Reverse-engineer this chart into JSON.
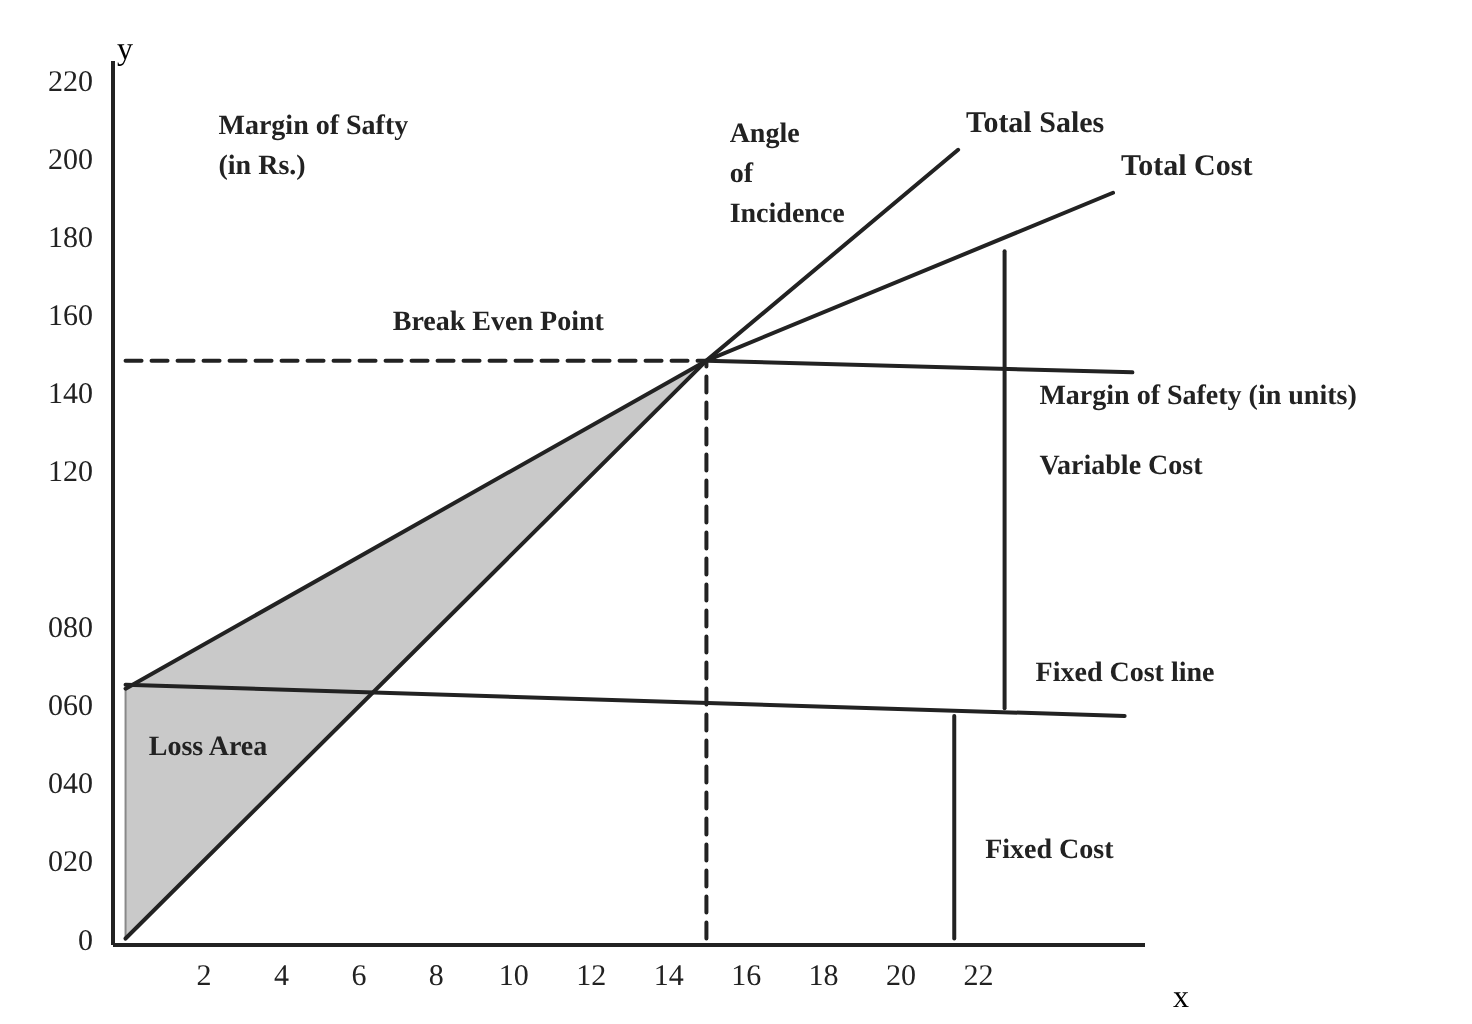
{
  "chart_data": {
    "type": "line",
    "xlabel": "x",
    "ylabel": "y",
    "xlim": [
      -0.35,
      26.3
    ],
    "ylim": [
      -1.4,
      225
    ],
    "xticks": [
      2,
      4,
      6,
      8,
      10,
      12,
      14,
      16,
      18,
      20,
      22
    ],
    "yticks": [
      0,
      {
        "value": 20,
        "label": "020"
      },
      {
        "value": 40,
        "label": "040"
      },
      {
        "value": 60,
        "label": "060"
      },
      {
        "value": 80,
        "label": "080"
      },
      120,
      140,
      160,
      180,
      200,
      220
    ],
    "grid": false,
    "series": [
      {
        "name": "Total Sales",
        "color": "#222222",
        "x": [
          0,
          15,
          21.5
        ],
        "values": [
          0,
          148,
          202
        ],
        "lower": [
          0,
          148,
          null
        ],
        "upper": [
          64,
          148,
          null
        ]
      },
      {
        "name": "Total Cost",
        "color": "#222222",
        "x": [
          0,
          15,
          25.5
        ],
        "values": [
          64,
          148,
          191
        ]
      },
      {
        "color": "#222222",
        "x": [
          0,
          25.8
        ],
        "values": [
          65,
          57
        ]
      },
      {
        "color": "#222222",
        "x": [
          15,
          26
        ],
        "values": [
          148,
          145
        ]
      },
      {
        "color": "#222222",
        "x": [
          0,
          15
        ],
        "values": [
          148,
          148
        ],
        "line_style": "dashed"
      },
      {
        "color": "#222222",
        "x": [
          15,
          15
        ],
        "values": [
          0,
          148
        ],
        "line_style": "dashed"
      },
      {
        "color": "#222222",
        "x": [
          22.7,
          22.7
        ],
        "values": [
          176,
          59
        ]
      },
      {
        "color": "#222222",
        "x": [
          21.4,
          21.4
        ],
        "values": [
          57,
          0
        ]
      }
    ],
    "annotations": [
      "Margin of Safty\n(in Rs.)",
      "Break Even Point",
      "Angle\nof\nIncidence",
      "Margin of Safety (in units)",
      "Variable Cost",
      "Fixed Cost line",
      "Loss Area",
      "Fixed Cost"
    ]
  }
}
